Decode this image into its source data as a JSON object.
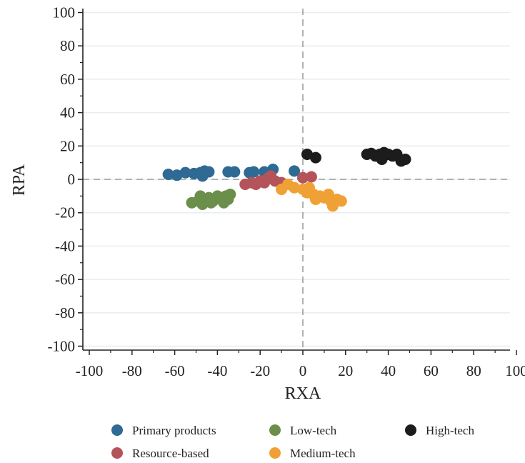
{
  "chart_data": {
    "type": "scatter",
    "xlabel": "RXA",
    "ylabel": "RPA",
    "xlim": [
      -100,
      100
    ],
    "ylim": [
      -100,
      100
    ],
    "xticks": [
      "-100",
      "-80",
      "-60",
      "-40",
      "-20",
      "0",
      "20",
      "40",
      "60",
      "80",
      "100"
    ],
    "yticks": [
      "100",
      "80",
      "60",
      "40",
      "20",
      "0",
      "-20",
      "-40",
      "-60",
      "-80",
      "-100"
    ],
    "grid": true,
    "reference_lines": {
      "x": 0,
      "y": 0
    },
    "legend_position": "bottom",
    "series": [
      {
        "name": "Primary products",
        "color": "#2e6a94",
        "points": [
          [
            -63,
            3
          ],
          [
            -59,
            2.5
          ],
          [
            -55,
            4
          ],
          [
            -51,
            3.5
          ],
          [
            -48,
            4
          ],
          [
            -47,
            2
          ],
          [
            -46,
            5
          ],
          [
            -44,
            4.5
          ],
          [
            -35,
            4.5
          ],
          [
            -32,
            4.5
          ],
          [
            -25,
            4
          ],
          [
            -23,
            4.5
          ],
          [
            -18,
            4.5
          ],
          [
            -14,
            6
          ],
          [
            -4,
            5
          ]
        ]
      },
      {
        "name": "Resource-based",
        "color": "#b5535a",
        "points": [
          [
            -27,
            -3
          ],
          [
            -24,
            -2
          ],
          [
            -22,
            -3
          ],
          [
            -20,
            -1
          ],
          [
            -18,
            -2
          ],
          [
            -17,
            0
          ],
          [
            -16,
            1
          ],
          [
            -15,
            2
          ],
          [
            -13,
            -1
          ],
          [
            -10,
            -2
          ],
          [
            -8,
            -3
          ],
          [
            0,
            1
          ],
          [
            4,
            1.5
          ]
        ]
      },
      {
        "name": "Low-tech",
        "color": "#6b8f4a",
        "points": [
          [
            -52,
            -14
          ],
          [
            -49,
            -13
          ],
          [
            -48,
            -10
          ],
          [
            -47,
            -15
          ],
          [
            -46,
            -12
          ],
          [
            -44,
            -11
          ],
          [
            -43,
            -14
          ],
          [
            -42,
            -13
          ],
          [
            -40,
            -10
          ],
          [
            -38,
            -11
          ],
          [
            -37,
            -14
          ],
          [
            -36,
            -10
          ],
          [
            -35,
            -12
          ],
          [
            -34,
            -9
          ]
        ]
      },
      {
        "name": "Medium-tech",
        "color": "#f0a135",
        "points": [
          [
            -10,
            -6
          ],
          [
            -7,
            -3
          ],
          [
            -4,
            -5
          ],
          [
            0,
            -6
          ],
          [
            2,
            -8
          ],
          [
            3,
            -5
          ],
          [
            5,
            -9
          ],
          [
            6,
            -12
          ],
          [
            8,
            -10
          ],
          [
            10,
            -11
          ],
          [
            12,
            -9
          ],
          [
            13,
            -13
          ],
          [
            14,
            -16
          ],
          [
            16,
            -12
          ],
          [
            18,
            -13
          ]
        ]
      },
      {
        "name": "High-tech",
        "color": "#1c1c1c",
        "points": [
          [
            2,
            15
          ],
          [
            6,
            13
          ],
          [
            30,
            15
          ],
          [
            32,
            15.5
          ],
          [
            34,
            14
          ],
          [
            36,
            15
          ],
          [
            37,
            12
          ],
          [
            38,
            16
          ],
          [
            40,
            15
          ],
          [
            42,
            14
          ],
          [
            44,
            15
          ],
          [
            46,
            11
          ],
          [
            48,
            12
          ]
        ]
      }
    ]
  }
}
